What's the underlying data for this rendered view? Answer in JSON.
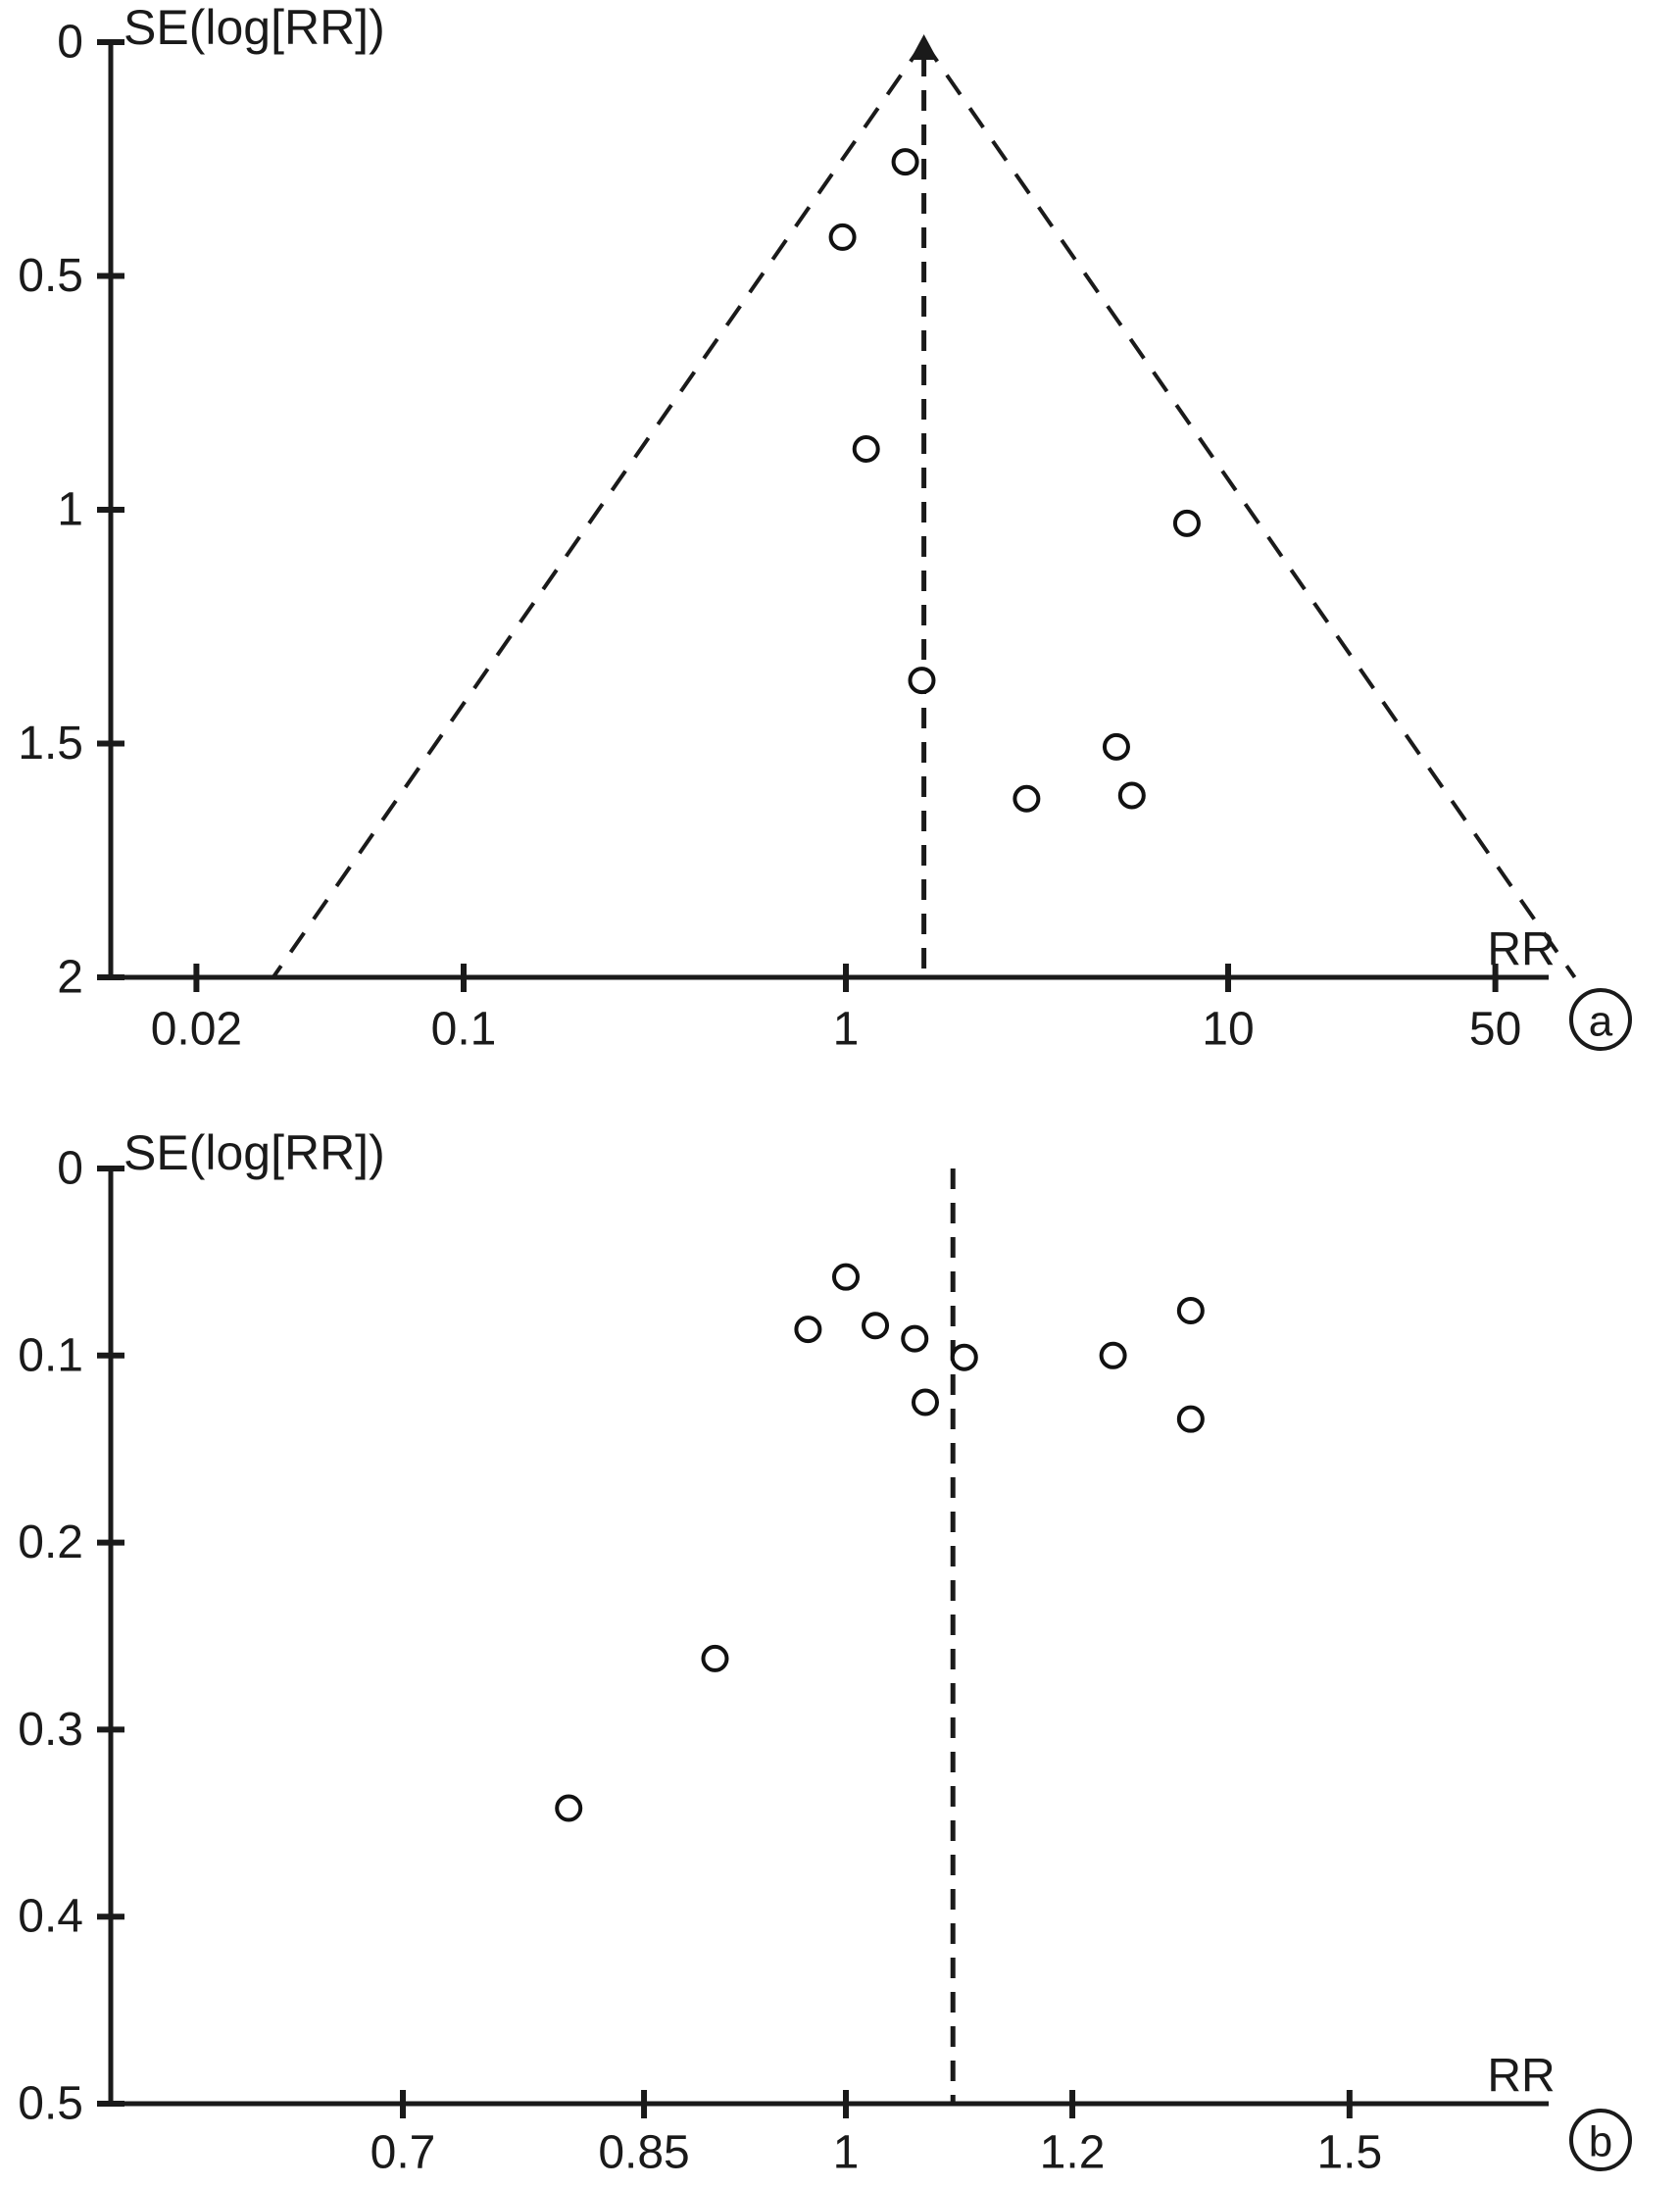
{
  "figure": {
    "description": "Two funnel plots (meta-analysis publication bias assessment)",
    "panels": [
      "a",
      "b"
    ]
  },
  "chart_data": [
    {
      "type": "scatter",
      "subtype": "funnel-plot",
      "panel_label": "a",
      "ylabel": "SE(log[RR])",
      "xlabel": "RR",
      "x_scale": "log",
      "x_ticks": [
        0.02,
        0.1,
        1,
        10,
        50
      ],
      "x_tick_labels": [
        "0.02",
        "0.1",
        "1",
        "10",
        "50"
      ],
      "xlim": [
        0.012,
        69
      ],
      "y_ticks": [
        0,
        0.5,
        1,
        1.5,
        2
      ],
      "y_tick_labels": [
        "0",
        "0.5",
        "1",
        "1.5",
        "2"
      ],
      "ylim": [
        0,
        2
      ],
      "y_inverted": true,
      "grid": false,
      "pooled_rr": 1.6,
      "funnel_ci_lines": true,
      "points": [
        {
          "rr": 1.43,
          "se": 0.256
        },
        {
          "rr": 0.98,
          "se": 0.417
        },
        {
          "rr": 1.13,
          "se": 0.87
        },
        {
          "rr": 7.8,
          "se": 1.029
        },
        {
          "rr": 1.58,
          "se": 1.365
        },
        {
          "rr": 5.1,
          "se": 1.507
        },
        {
          "rr": 2.97,
          "se": 1.618
        },
        {
          "rr": 5.6,
          "se": 1.611
        }
      ]
    },
    {
      "type": "scatter",
      "subtype": "funnel-plot",
      "panel_label": "b",
      "ylabel": "SE(log[RR])",
      "xlabel": "RR",
      "x_scale": "log",
      "x_ticks": [
        0.7,
        0.85,
        1,
        1.2,
        1.5
      ],
      "x_tick_labels": [
        "0.7",
        "0.85",
        "1",
        "1.2",
        "1.5"
      ],
      "xlim": [
        0.55,
        1.76
      ],
      "y_ticks": [
        0,
        0.1,
        0.2,
        0.3,
        0.4,
        0.5
      ],
      "y_tick_labels": [
        "0",
        "0.1",
        "0.2",
        "0.3",
        "0.4",
        "0.5"
      ],
      "ylim": [
        0,
        0.5
      ],
      "y_inverted": true,
      "grid": false,
      "pooled_rr": 1.09,
      "funnel_ci_lines": false,
      "points": [
        {
          "rr": 1.0,
          "se": 0.058
        },
        {
          "rr": 0.97,
          "se": 0.086
        },
        {
          "rr": 1.024,
          "se": 0.084
        },
        {
          "rr": 1.057,
          "se": 0.091
        },
        {
          "rr": 1.1,
          "se": 0.101
        },
        {
          "rr": 1.066,
          "se": 0.125
        },
        {
          "rr": 1.24,
          "se": 0.1
        },
        {
          "rr": 1.32,
          "se": 0.076
        },
        {
          "rr": 1.32,
          "se": 0.134
        },
        {
          "rr": 0.9,
          "se": 0.262
        },
        {
          "rr": 0.8,
          "se": 0.342
        }
      ]
    }
  ],
  "colors": {
    "ink": "#1a1a1a",
    "background": "#ffffff"
  }
}
